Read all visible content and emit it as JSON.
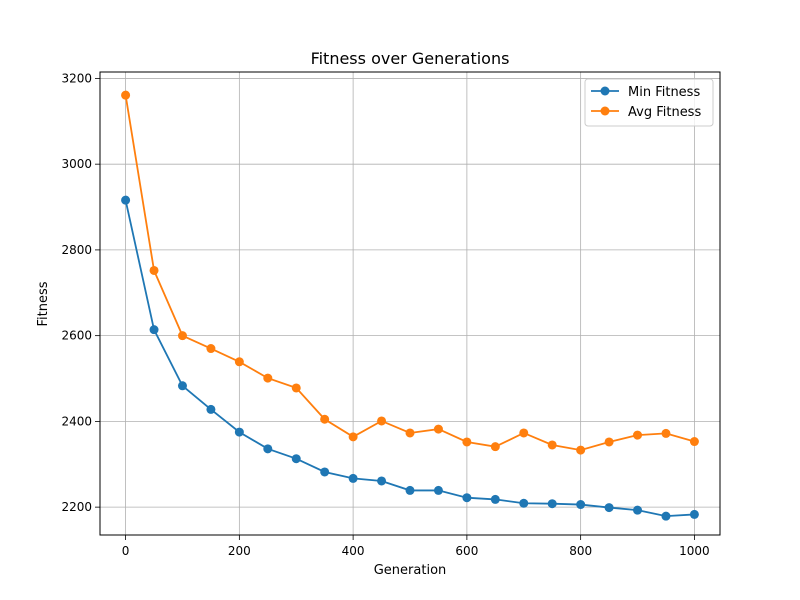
{
  "chart_data": {
    "type": "line",
    "title": "Fitness over Generations",
    "xlabel": "Generation",
    "ylabel": "Fitness",
    "xlim": [
      -45,
      1045
    ],
    "ylim": [
      2135,
      3215
    ],
    "xticks": [
      0,
      200,
      400,
      600,
      800,
      1000
    ],
    "yticks": [
      2200,
      2400,
      2600,
      2800,
      3000,
      3200
    ],
    "grid": true,
    "legend_position": "top-right",
    "x": [
      0,
      50,
      100,
      150,
      200,
      250,
      300,
      350,
      400,
      450,
      500,
      550,
      600,
      650,
      700,
      750,
      800,
      850,
      900,
      950,
      1000
    ],
    "series": [
      {
        "name": "Min Fitness",
        "color": "#1f77b4",
        "values": [
          2916,
          2614,
          2483,
          2428,
          2375,
          2336,
          2313,
          2282,
          2267,
          2261,
          2239,
          2239,
          2222,
          2218,
          2209,
          2208,
          2206,
          2199,
          2193,
          2179,
          2183
        ]
      },
      {
        "name": "Avg Fitness",
        "color": "#ff7f0e",
        "values": [
          3161,
          2752,
          2600,
          2570,
          2539,
          2501,
          2478,
          2405,
          2364,
          2401,
          2373,
          2382,
          2352,
          2341,
          2373,
          2345,
          2333,
          2352,
          2368,
          2372,
          2353
        ]
      }
    ]
  }
}
